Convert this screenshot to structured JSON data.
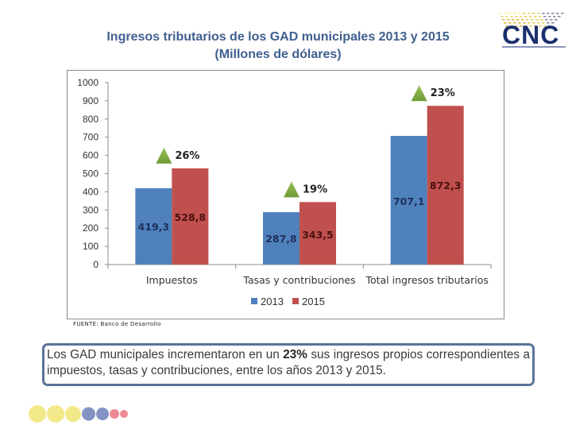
{
  "header": {
    "title_line1": "Ingresos tributarios de los GAD municipales 2013 y 2015",
    "title_line2": "(Millones de dólares)",
    "logo_text": "CNC"
  },
  "chart_data": {
    "type": "bar",
    "title": "Ingresos tributarios de los GAD municipales 2013 y 2015 (Millones de dólares)",
    "xlabel": "",
    "ylabel": "",
    "ylim": [
      0,
      1000
    ],
    "yticks": [
      0,
      100,
      200,
      300,
      400,
      500,
      600,
      700,
      800,
      900,
      1000
    ],
    "grid": false,
    "legend_position": "bottom",
    "categories": [
      "Impuestos",
      "Tasas y contribuciones",
      "Total ingresos tributarios"
    ],
    "series": [
      {
        "name": "2013",
        "color": "#4f81bd",
        "values": [
          419.3,
          287.8,
          707.1
        ],
        "labels": [
          "419,3",
          "287,8",
          "707,1"
        ]
      },
      {
        "name": "2015",
        "color": "#c0504d",
        "values": [
          528.8,
          343.5,
          872.3
        ],
        "labels": [
          "528,8",
          "343,5",
          "872,3"
        ]
      }
    ],
    "annotations": [
      {
        "category": "Impuestos",
        "text": "26%",
        "icon": "up-triangle-icon"
      },
      {
        "category": "Tasas y contribuciones",
        "text": "19%",
        "icon": "up-triangle-icon"
      },
      {
        "category": "Total ingresos tributarios",
        "text": "23%",
        "icon": "up-triangle-icon"
      }
    ]
  },
  "source": "FUENTE: Banco de Desarrollo",
  "note": {
    "before": "Los GAD municipales incrementaron en un ",
    "highlight": "23%",
    "after": " sus ingresos propios correspondientes a impuestos, tasas y contribuciones, entre los años 2013 y 2015."
  },
  "decor": {
    "dot_colors": [
      "#f3e98a",
      "#f3e98a",
      "#f3e98a",
      "#8593c4",
      "#8593c4",
      "#ee8a94",
      "#ee8a94"
    ]
  }
}
